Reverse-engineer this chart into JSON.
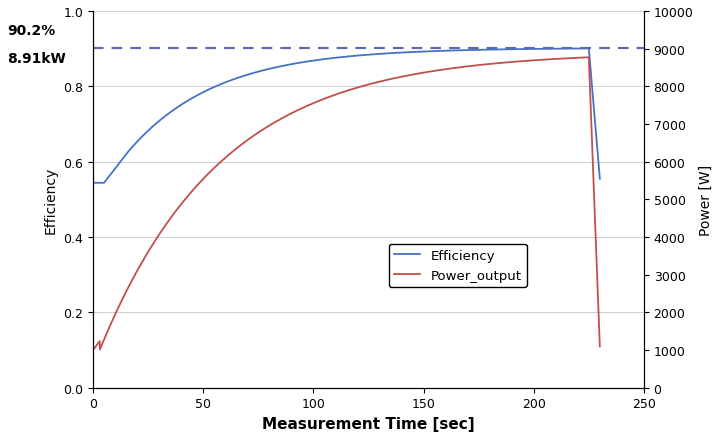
{
  "xlabel": "Measurement Time [sec]",
  "ylabel_left": "Efficiency",
  "ylabel_right": "Power [W]",
  "xlim": [
    0,
    250
  ],
  "ylim_left": [
    0,
    1
  ],
  "ylim_right": [
    0,
    10000
  ],
  "xticks": [
    0,
    50,
    100,
    150,
    200,
    250
  ],
  "yticks_left": [
    0,
    0.2,
    0.4,
    0.6,
    0.8,
    1
  ],
  "yticks_right": [
    0,
    1000,
    2000,
    3000,
    4000,
    5000,
    6000,
    7000,
    8000,
    9000,
    10000
  ],
  "dashed_line_efficiency": 0.902,
  "annotation_pct": "90.2%",
  "annotation_kw": "8.91kW",
  "legend_entries": [
    "Efficiency",
    "Power_output"
  ],
  "line_color_efficiency": "#4472C4",
  "line_color_power": "#C0504D",
  "dashed_color_blue": "#4472C4",
  "dashed_color_red": "#C0504D",
  "background_color": "#FFFFFF",
  "grid_color": "#C8C8C8"
}
